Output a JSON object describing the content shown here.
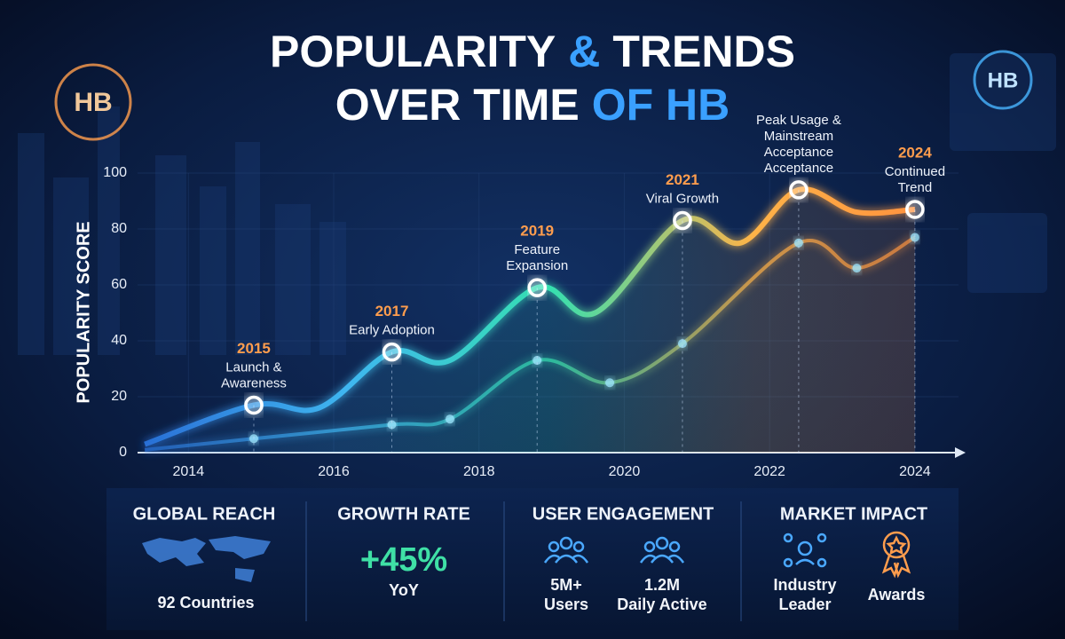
{
  "brand": "HB",
  "chart_data": {
    "type": "line",
    "title": {
      "line1": [
        "POPULARITY",
        "&",
        "TRENDS"
      ],
      "line2": [
        "OVER TIME",
        "OF HB"
      ]
    },
    "ylabel": "POPULARITY SCORE",
    "xlim": [
      2013.3,
      2024.6
    ],
    "xticks": [
      2014,
      2016,
      2018,
      2020,
      2022,
      2024
    ],
    "ylim": [
      0,
      100
    ],
    "yticks": [
      0,
      20,
      40,
      60,
      80,
      100
    ],
    "gradient": [
      "#2a6fd6",
      "#3fb6f0",
      "#35e0b0",
      "#ffb347",
      "#ff8a3d"
    ],
    "series": [
      {
        "x": [
          2013.4,
          2014.9,
          2015.8,
          2016.8,
          2017.6,
          2018.8,
          2019.6,
          2020.8,
          2021.6,
          2022.4,
          2023.2,
          2024.0
        ],
        "values": [
          3,
          17,
          16,
          36,
          33,
          59,
          50,
          83,
          75,
          94,
          86,
          87
        ]
      },
      {
        "x": [
          2013.4,
          2014.9,
          2016.8,
          2017.6,
          2018.8,
          2019.8,
          2020.8,
          2022.4,
          2023.2,
          2024.0
        ],
        "values": [
          1,
          5,
          10,
          12,
          33,
          25,
          39,
          75,
          66,
          77
        ]
      }
    ],
    "annotations": [
      {
        "x": 2014.9,
        "y": 17,
        "year": "2015",
        "lines": [
          "Launch &",
          "Awareness"
        ]
      },
      {
        "x": 2016.8,
        "y": 36,
        "year": "2017",
        "lines": [
          "Early Adoption"
        ]
      },
      {
        "x": 2018.8,
        "y": 59,
        "year": "2019",
        "lines": [
          "Feature",
          "Expansion"
        ]
      },
      {
        "x": 2020.8,
        "y": 83,
        "year": "2021",
        "lines": [
          "Viral Growth"
        ]
      },
      {
        "x": 2022.4,
        "y": 94,
        "lines": [
          "Peak Usage &",
          "Mainstream",
          "Acceptance",
          "Acceptance"
        ]
      },
      {
        "x": 2024.0,
        "y": 87,
        "year": "2024",
        "lines": [
          "Continued",
          "Trend"
        ]
      }
    ]
  },
  "stats": [
    {
      "heading": "GLOBAL REACH",
      "items": [
        "92 Countries"
      ]
    },
    {
      "heading": "GROWTH RATE",
      "big": "+45%",
      "items": [
        "YoY"
      ]
    },
    {
      "heading": "USER ENGAGEMENT",
      "items": [
        "5M+",
        "Users",
        "1.2M",
        "Daily Active"
      ]
    },
    {
      "heading": "MARKET IMPACT",
      "items": [
        "Industry",
        "Leader",
        "Awards"
      ]
    }
  ]
}
